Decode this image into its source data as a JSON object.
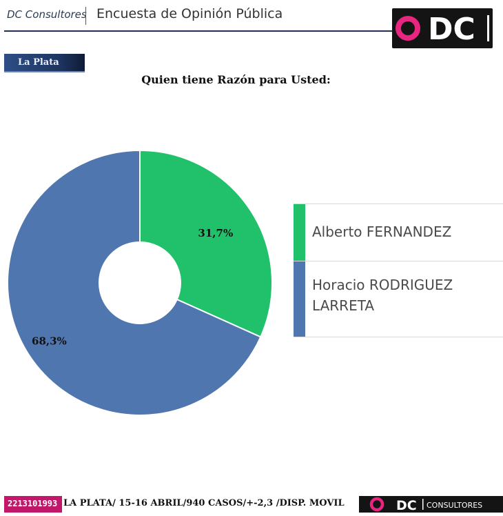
{
  "header": {
    "brand": "DC Consultores",
    "title": "Encuesta de Opinión Pública",
    "logo_text": "DC"
  },
  "location": "La Plata",
  "chart_data": {
    "type": "pie",
    "style": "donut",
    "title": "Quien tiene Razón para Usted:",
    "series": [
      {
        "name": "Alberto FERNANDEZ",
        "value": 31.7,
        "label": "31,7%",
        "color": "#21c16b"
      },
      {
        "name": "Horacio RODRIGUEZ LARRETA",
        "value": 68.3,
        "label": "68,3%",
        "color": "#4f76ae"
      }
    ],
    "legend_position": "right"
  },
  "legend": {
    "items": [
      {
        "label": "Alberto FERNANDEZ",
        "color": "#21c16b"
      },
      {
        "label": "Horacio RODRIGUEZ LARRETA",
        "color": "#4f76ae"
      }
    ]
  },
  "footer": {
    "phone": "2213101993",
    "text": "LA PLATA/ 15-16 ABRIL/940 CASOS/+-2,3  /DISP. MOVIL",
    "logo_text": "DC",
    "logo_subtext": "CONSULTORES"
  },
  "colors": {
    "brand_magenta": "#e6267f",
    "header_navy": "#1f2f55",
    "green": "#21c16b",
    "blue": "#4f76ae"
  }
}
